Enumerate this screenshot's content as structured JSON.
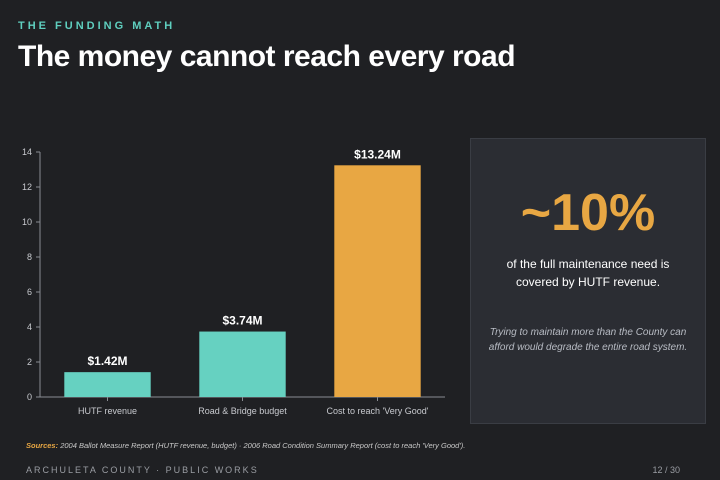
{
  "header": {
    "eyebrow": "THE FUNDING MATH",
    "title": "The money cannot reach every road"
  },
  "chart_data": {
    "type": "bar",
    "categories": [
      "HUTF revenue",
      "Road & Bridge budget",
      "Cost to reach 'Very Good'"
    ],
    "values": [
      1.42,
      3.74,
      13.24
    ],
    "data_labels": [
      "$1.42M",
      "$3.74M",
      "$13.24M"
    ],
    "colors": [
      "#66d1c1",
      "#66d1c1",
      "#e8a743"
    ],
    "ylim": [
      0,
      14
    ],
    "yticks": [
      0,
      2,
      4,
      6,
      8,
      10,
      12,
      14
    ],
    "title": "",
    "xlabel": "",
    "ylabel": "",
    "grid": false,
    "legend": "none"
  },
  "callout": {
    "stat": "~10%",
    "description": "of the full maintenance need is covered by HUTF revenue.",
    "note": "Trying to maintain more than the County can afford would degrade the entire road system."
  },
  "sources": {
    "label": "Sources:",
    "text": "2004 Ballot Measure Report (HUTF revenue, budget) · 2006 Road Condition Summary Report (cost to reach 'Very Good')."
  },
  "footer": {
    "left": "ARCHULETA COUNTY  ·  PUBLIC WORKS",
    "page": "12 / 30"
  },
  "colors": {
    "background": "#1f2023",
    "accent_teal": "#66d1c1",
    "accent_orange": "#e8a743",
    "panel": "#2b2d33"
  }
}
